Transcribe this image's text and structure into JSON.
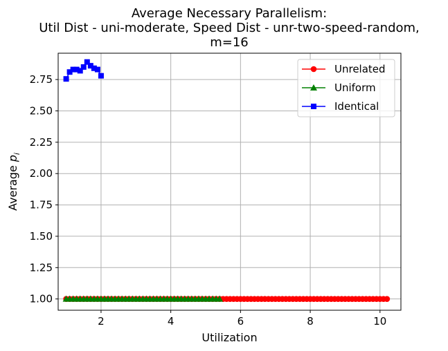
{
  "chart_data": {
    "type": "line",
    "title_lines": [
      "Average Necessary Parallelism:",
      "Util Dist - uni-moderate, Speed Dist - unr-two-speed-random,",
      "m=16"
    ],
    "xlabel": "Utilization",
    "ylabel_main": "Average ",
    "ylabel_var": "p",
    "ylabel_sub": "i",
    "xlim": [
      0.77,
      10.6
    ],
    "ylim": [
      0.91,
      2.96
    ],
    "xticks": [
      2,
      4,
      6,
      8,
      10
    ],
    "xtick_labels": [
      "2",
      "4",
      "6",
      "8",
      "10"
    ],
    "yticks": [
      1.0,
      1.25,
      1.5,
      1.75,
      2.0,
      2.25,
      2.5,
      2.75
    ],
    "ytick_labels": [
      "1.00",
      "1.25",
      "1.50",
      "1.75",
      "2.00",
      "2.25",
      "2.50",
      "2.75"
    ],
    "grid": true,
    "legend_position": "top-right",
    "series": [
      {
        "name": "Unrelated",
        "color": "#ff0000",
        "marker": "circle",
        "x_start": 1.0,
        "x_end": 10.2,
        "x_step": 0.1,
        "y_constant": 1.0
      },
      {
        "name": "Uniform",
        "color": "#008000",
        "marker": "triangle",
        "x_start": 1.0,
        "x_end": 5.4,
        "x_step": 0.1,
        "y_constant": 1.0
      },
      {
        "name": "Identical",
        "color": "#0000ff",
        "marker": "square",
        "x": [
          1.0,
          1.1,
          1.2,
          1.3,
          1.4,
          1.5,
          1.6,
          1.7,
          1.8,
          1.9,
          2.0
        ],
        "y": [
          2.755,
          2.81,
          2.83,
          2.83,
          2.82,
          2.85,
          2.89,
          2.86,
          2.84,
          2.83,
          2.78
        ]
      }
    ]
  }
}
